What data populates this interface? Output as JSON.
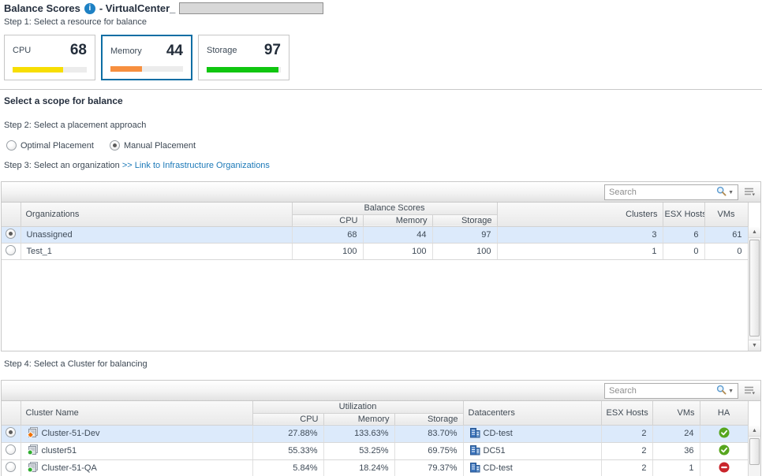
{
  "page": {
    "title": "Balance Scores",
    "title_suffix": "- VirtualCenter_"
  },
  "steps": {
    "step1_label": "Step 1: Select a resource for balance",
    "scope_heading": "Select a scope for balance",
    "step2_label": "Step 2: Select a placement approach",
    "step3_label": "Step 3: Select an organization",
    "step3_link": ">> Link to Infrastructure Organizations",
    "step4_label": "Step 4: Select a Cluster for balancing"
  },
  "resource_cards": {
    "cards": [
      {
        "label": "CPU",
        "value": 68,
        "bar_color": "#f7de04",
        "selected": false
      },
      {
        "label": "Memory",
        "value": 44,
        "bar_color": "#f78f3f",
        "selected": true
      },
      {
        "label": "Storage",
        "value": 97,
        "bar_color": "#10c610",
        "selected": false
      }
    ]
  },
  "placement_options": {
    "optimal": {
      "label": "Optimal Placement",
      "selected": false
    },
    "manual": {
      "label": "Manual Placement",
      "selected": true
    }
  },
  "org_table": {
    "search": {
      "placeholder": "Search"
    },
    "headers": {
      "organizations": "Organizations",
      "group": "Balance Scores",
      "cpu": "CPU",
      "memory": "Memory",
      "storage": "Storage",
      "clusters": "Clusters",
      "esx_hosts": "ESX Hosts",
      "vms": "VMs"
    },
    "rows": [
      {
        "name": "Unassigned",
        "cpu": "68",
        "memory": "44",
        "storage": "97",
        "clusters": "3",
        "esx_hosts": "6",
        "vms": "61",
        "selected": true
      },
      {
        "name": "Test_1",
        "cpu": "100",
        "memory": "100",
        "storage": "100",
        "clusters": "1",
        "esx_hosts": "0",
        "vms": "0",
        "selected": false
      }
    ]
  },
  "cluster_table": {
    "search": {
      "placeholder": "Search"
    },
    "headers": {
      "cluster_name": "Cluster Name",
      "group": "Utilization",
      "cpu": "CPU",
      "memory": "Memory",
      "storage": "Storage",
      "datacenters": "Datacenters",
      "esx_hosts": "ESX Hosts",
      "vms": "VMs",
      "ha": "HA"
    },
    "rows": [
      {
        "name": "Cluster-51-Dev",
        "cpu": "27.88%",
        "memory": "133.63%",
        "storage": "83.70%",
        "datacenter": "CD-test",
        "esx_hosts": "2",
        "vms": "24",
        "ha": "enabled",
        "status": "warning",
        "selected": true
      },
      {
        "name": "cluster51",
        "cpu": "55.33%",
        "memory": "53.25%",
        "storage": "69.75%",
        "datacenter": "DC51",
        "esx_hosts": "2",
        "vms": "36",
        "ha": "enabled",
        "status": "ok",
        "selected": false
      },
      {
        "name": "Cluster-51-QA",
        "cpu": "5.84%",
        "memory": "18.24%",
        "storage": "79.37%",
        "datacenter": "CD-test",
        "esx_hosts": "2",
        "vms": "1",
        "ha": "disabled",
        "status": "ok",
        "selected": false
      }
    ]
  },
  "colors": {
    "selected_card_border": "#0d6ea4",
    "link": "#1c79b8",
    "selected_row": "#dceafb",
    "cpu_bar": "#f7de04",
    "memory_bar": "#f78f3f",
    "storage_bar": "#10c610",
    "ha_enabled": "#57a61e",
    "ha_disabled": "#c9252b"
  }
}
